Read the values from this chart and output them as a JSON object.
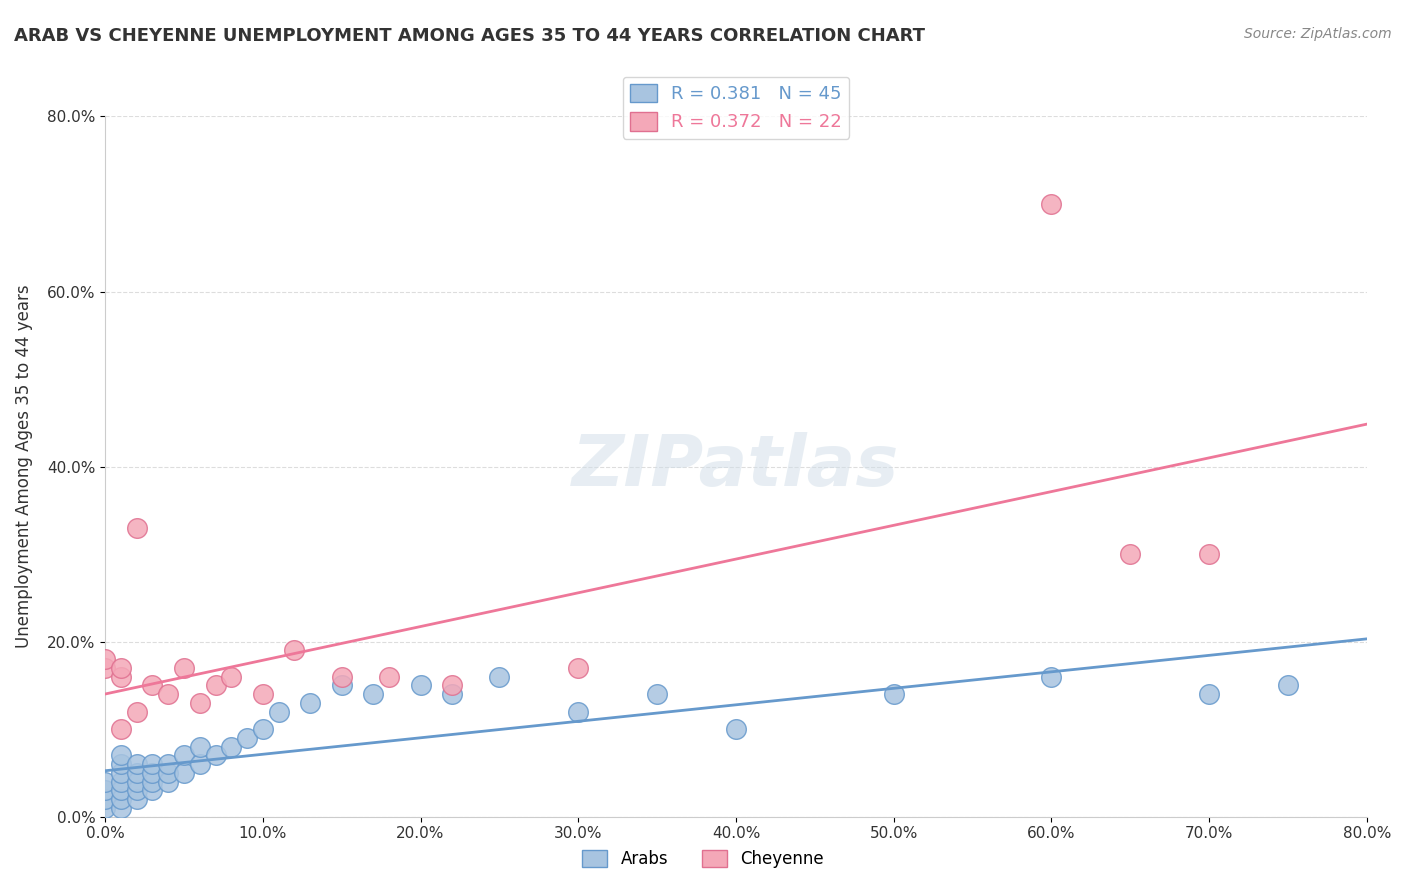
{
  "title": "ARAB VS CHEYENNE UNEMPLOYMENT AMONG AGES 35 TO 44 YEARS CORRELATION CHART",
  "source": "Source: ZipAtlas.com",
  "ylabel": "Unemployment Among Ages 35 to 44 years",
  "xlabel": "",
  "xlim": [
    0.0,
    0.8
  ],
  "ylim": [
    0.0,
    0.8
  ],
  "xticks": [
    0.0,
    0.1,
    0.2,
    0.3,
    0.4,
    0.5,
    0.6,
    0.7,
    0.8
  ],
  "yticks": [
    0.0,
    0.2,
    0.4,
    0.6,
    0.8
  ],
  "xtick_labels": [
    "0.0%",
    "10.0%",
    "20.0%",
    "30.0%",
    "40.0%",
    "50.0%",
    "60.0%",
    "70.0%",
    "80.0%"
  ],
  "ytick_labels": [
    "0.0%",
    "20.0%",
    "40.0%",
    "60.0%",
    "80.0%"
  ],
  "arab_color": "#a8c4e0",
  "cheyenne_color": "#f4a8b8",
  "arab_line_color": "#6699cc",
  "cheyenne_line_color": "#ee7799",
  "arab_R": 0.381,
  "arab_N": 45,
  "cheyenne_R": 0.372,
  "cheyenne_N": 22,
  "watermark": "ZIPatlas",
  "watermark_color": "#d0dde8",
  "arab_x": [
    0.0,
    0.0,
    0.0,
    0.0,
    0.01,
    0.01,
    0.01,
    0.01,
    0.01,
    0.01,
    0.01,
    0.02,
    0.02,
    0.02,
    0.02,
    0.02,
    0.03,
    0.03,
    0.03,
    0.03,
    0.04,
    0.04,
    0.04,
    0.05,
    0.05,
    0.06,
    0.06,
    0.07,
    0.08,
    0.09,
    0.1,
    0.11,
    0.13,
    0.15,
    0.17,
    0.2,
    0.22,
    0.25,
    0.3,
    0.35,
    0.4,
    0.5,
    0.6,
    0.7,
    0.75
  ],
  "arab_y": [
    0.01,
    0.02,
    0.03,
    0.04,
    0.01,
    0.02,
    0.03,
    0.04,
    0.05,
    0.06,
    0.07,
    0.02,
    0.03,
    0.04,
    0.05,
    0.06,
    0.03,
    0.04,
    0.05,
    0.06,
    0.04,
    0.05,
    0.06,
    0.05,
    0.07,
    0.06,
    0.08,
    0.07,
    0.08,
    0.09,
    0.1,
    0.12,
    0.13,
    0.15,
    0.14,
    0.15,
    0.14,
    0.16,
    0.12,
    0.14,
    0.1,
    0.14,
    0.16,
    0.14,
    0.15
  ],
  "cheyenne_x": [
    0.0,
    0.0,
    0.01,
    0.01,
    0.01,
    0.02,
    0.02,
    0.03,
    0.04,
    0.05,
    0.06,
    0.07,
    0.08,
    0.1,
    0.12,
    0.15,
    0.18,
    0.22,
    0.3,
    0.6,
    0.65,
    0.7
  ],
  "cheyenne_y": [
    0.17,
    0.18,
    0.16,
    0.17,
    0.1,
    0.33,
    0.12,
    0.15,
    0.14,
    0.17,
    0.13,
    0.15,
    0.16,
    0.14,
    0.19,
    0.16,
    0.16,
    0.15,
    0.17,
    0.7,
    0.3,
    0.3
  ]
}
